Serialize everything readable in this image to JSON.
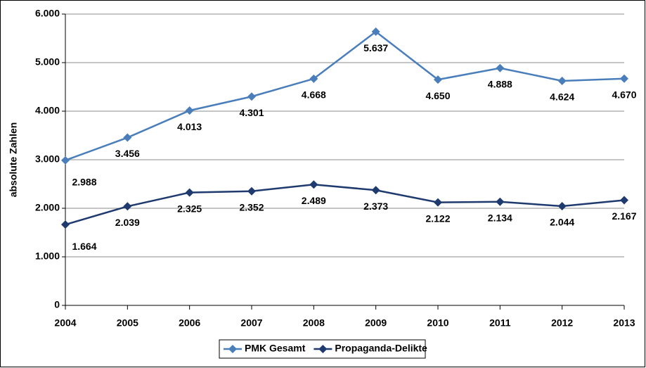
{
  "chart_data": {
    "type": "line",
    "y_label": "absolute Zahlen",
    "x": [
      2004,
      2005,
      2006,
      2007,
      2008,
      2009,
      2010,
      2011,
      2012,
      2013
    ],
    "xlim": [
      2004,
      2013
    ],
    "xticks": [
      2004,
      2005,
      2006,
      2007,
      2008,
      2009,
      2010,
      2011,
      2012,
      2013
    ],
    "ylim": [
      0,
      6000
    ],
    "yticks": [
      0,
      {
        "value": 1000,
        "label": "1.000"
      },
      {
        "value": 2000,
        "label": "2.000"
      },
      {
        "value": 3000,
        "label": "3.000"
      },
      {
        "value": 4000,
        "label": "4.000"
      },
      {
        "value": 5000,
        "label": "5.000"
      },
      {
        "value": 6000,
        "label": "6.000"
      }
    ],
    "grid": true,
    "legend": "bottom",
    "series": [
      {
        "name": "PMK Gesamt",
        "color": "#4a7ebb",
        "values": [
          2988,
          3456,
          4013,
          4301,
          4668,
          5637,
          4650,
          4888,
          4624,
          4670
        ],
        "value_labels": [
          "2.988",
          "3.456",
          "4.013",
          "4.301",
          "4.668",
          "5.637",
          "4.650",
          "4.888",
          "4.624",
          "4.670"
        ]
      },
      {
        "name": "Propaganda-Delikte",
        "color": "#1f3a6e",
        "values": [
          1664,
          2039,
          2325,
          2352,
          2489,
          2373,
          2122,
          2134,
          2044,
          2167
        ],
        "value_labels": [
          "1.664",
          "2.039",
          "2.325",
          "2.352",
          "2.489",
          "2.373",
          "2.122",
          "2.134",
          "2.044",
          "2.167"
        ]
      }
    ]
  }
}
